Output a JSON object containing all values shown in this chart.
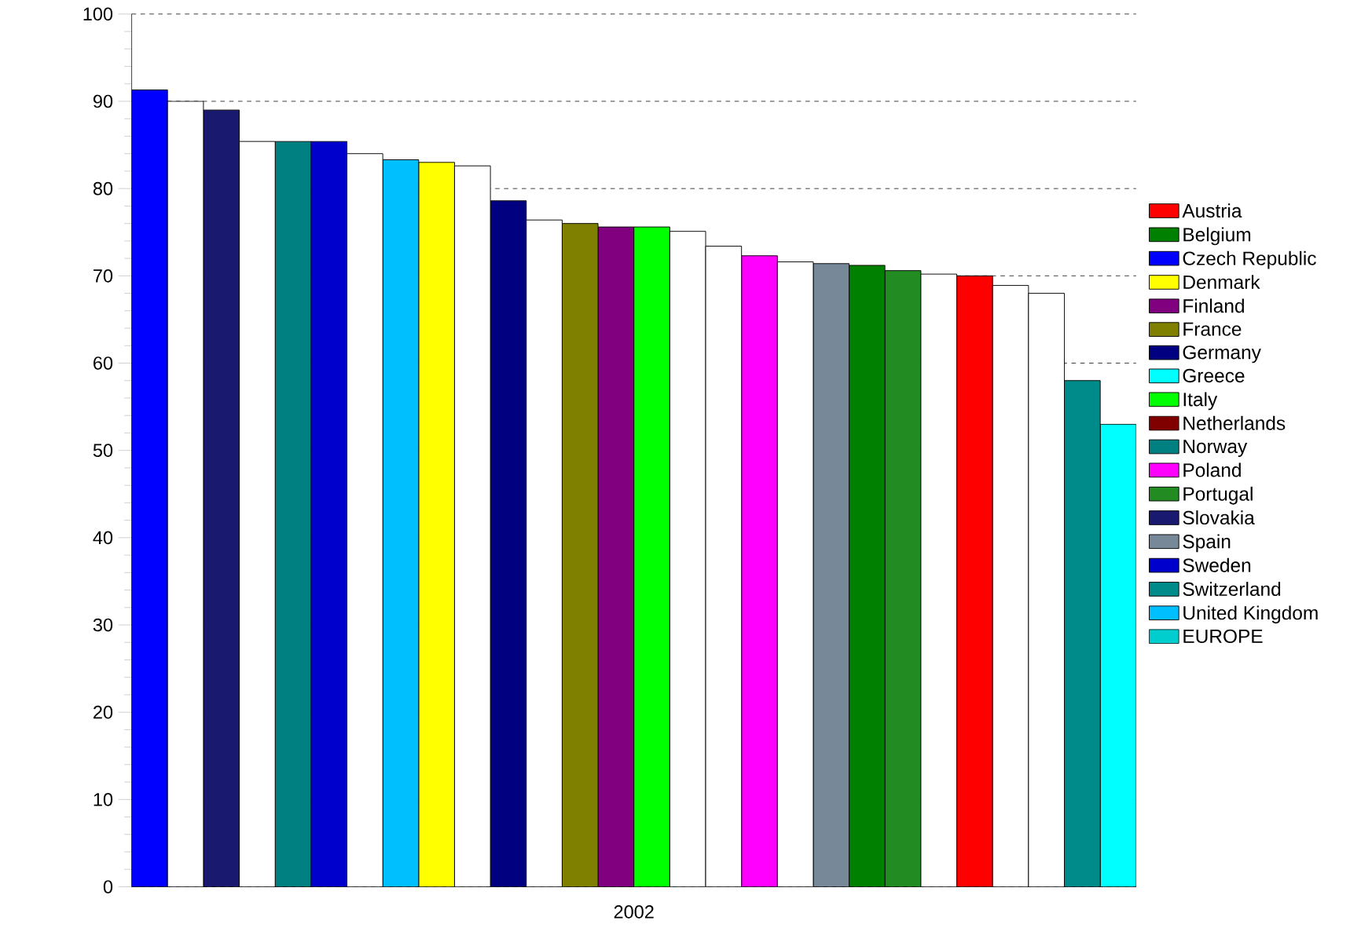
{
  "chart_data": {
    "type": "bar",
    "xlabel": "2002",
    "categories": [
      null,
      null,
      null,
      null,
      null,
      null,
      null,
      null,
      null,
      null,
      null,
      null,
      null,
      null,
      null,
      null,
      null,
      null,
      null,
      null,
      null,
      null,
      null,
      null,
      null,
      null,
      null,
      null
    ],
    "ylim": [
      0,
      100
    ],
    "yticks": [
      0,
      10,
      20,
      30,
      40,
      50,
      60,
      70,
      80,
      90,
      100
    ],
    "grid": "y",
    "line_style": "dashed",
    "legend": "right",
    "series": [
      {
        "name": "Austria",
        "color": "#ff0000",
        "values": [
          null,
          null,
          null,
          null,
          null,
          null,
          null,
          null,
          null,
          null,
          null,
          null,
          null,
          null,
          null,
          null,
          null,
          null,
          null,
          null,
          null,
          null,
          null,
          70,
          null,
          null,
          null,
          null
        ]
      },
      {
        "name": "Belgium",
        "color": "#008000",
        "values": [
          null,
          null,
          null,
          null,
          null,
          null,
          null,
          null,
          null,
          null,
          null,
          null,
          null,
          null,
          null,
          null,
          null,
          null,
          null,
          null,
          71.2,
          null,
          null,
          null,
          null,
          null,
          null,
          null
        ]
      },
      {
        "name": "Czech Republic",
        "color": "#0000ff",
        "values": [
          91.3,
          null,
          null,
          null,
          null,
          null,
          null,
          null,
          null,
          null,
          null,
          null,
          null,
          null,
          null,
          null,
          null,
          null,
          null,
          null,
          null,
          null,
          null,
          null,
          null,
          null,
          null,
          null
        ]
      },
      {
        "name": "Denmark",
        "color": "#ffff00",
        "values": [
          null,
          null,
          null,
          null,
          null,
          null,
          null,
          null,
          83,
          null,
          null,
          null,
          null,
          null,
          null,
          null,
          null,
          null,
          null,
          null,
          null,
          null,
          null,
          null,
          null,
          null,
          null,
          null
        ]
      },
      {
        "name": "Finland",
        "color": "#800080",
        "values": [
          null,
          null,
          null,
          null,
          null,
          null,
          null,
          null,
          null,
          null,
          null,
          null,
          null,
          75.6,
          null,
          null,
          null,
          null,
          null,
          null,
          null,
          null,
          null,
          null,
          null,
          null,
          null,
          null
        ]
      },
      {
        "name": "France",
        "color": "#808000",
        "values": [
          null,
          null,
          null,
          null,
          null,
          null,
          null,
          null,
          null,
          null,
          null,
          null,
          76,
          null,
          null,
          null,
          null,
          null,
          null,
          null,
          null,
          null,
          null,
          null,
          null,
          null,
          null,
          null
        ]
      },
      {
        "name": "Germany",
        "color": "#000080",
        "values": [
          null,
          null,
          null,
          null,
          null,
          null,
          null,
          null,
          null,
          null,
          78.6,
          null,
          null,
          null,
          null,
          null,
          null,
          null,
          null,
          null,
          null,
          null,
          null,
          null,
          null,
          null,
          null,
          null
        ]
      },
      {
        "name": "Greece",
        "color": "#00ffff",
        "values": [
          null,
          null,
          null,
          null,
          null,
          null,
          null,
          null,
          null,
          null,
          null,
          null,
          null,
          null,
          null,
          null,
          null,
          null,
          null,
          null,
          null,
          null,
          null,
          null,
          null,
          null,
          null,
          53
        ]
      },
      {
        "name": "Italy",
        "color": "#00ff00",
        "values": [
          null,
          null,
          null,
          null,
          null,
          null,
          null,
          null,
          null,
          null,
          null,
          null,
          null,
          null,
          75.6,
          null,
          null,
          null,
          null,
          null,
          null,
          null,
          null,
          null,
          null,
          null,
          null,
          null
        ]
      },
      {
        "name": "Netherlands",
        "color": "#800000",
        "values": [
          null,
          null,
          null,
          null,
          null,
          null,
          null,
          null,
          null,
          null,
          null,
          null,
          null,
          null,
          null,
          null,
          null,
          null,
          null,
          null,
          null,
          null,
          null,
          null,
          null,
          null,
          null,
          null
        ]
      },
      {
        "name": "Norway",
        "color": "#008080",
        "values": [
          null,
          null,
          null,
          null,
          85.4,
          null,
          null,
          null,
          null,
          null,
          null,
          null,
          null,
          null,
          null,
          null,
          null,
          null,
          null,
          null,
          null,
          null,
          null,
          null,
          null,
          null,
          null,
          null
        ]
      },
      {
        "name": "Poland",
        "color": "#ff00ff",
        "values": [
          null,
          null,
          null,
          null,
          null,
          null,
          null,
          null,
          null,
          null,
          null,
          null,
          null,
          null,
          null,
          null,
          null,
          72.3,
          null,
          null,
          null,
          null,
          null,
          null,
          null,
          null,
          null,
          null
        ]
      },
      {
        "name": "Portugal",
        "color": "#228b22",
        "values": [
          null,
          null,
          null,
          null,
          null,
          null,
          null,
          null,
          null,
          null,
          null,
          null,
          null,
          null,
          null,
          null,
          null,
          null,
          null,
          null,
          null,
          70.6,
          null,
          null,
          null,
          null,
          null,
          null
        ]
      },
      {
        "name": "Slovakia",
        "color": "#191970",
        "values": [
          null,
          null,
          89,
          null,
          null,
          null,
          null,
          null,
          null,
          null,
          null,
          null,
          null,
          null,
          null,
          null,
          null,
          null,
          null,
          null,
          null,
          null,
          null,
          null,
          null,
          null,
          null,
          null
        ]
      },
      {
        "name": "Spain",
        "color": "#778899",
        "values": [
          null,
          null,
          null,
          null,
          null,
          null,
          null,
          null,
          null,
          null,
          null,
          null,
          null,
          null,
          null,
          null,
          null,
          null,
          null,
          71.4,
          null,
          null,
          null,
          null,
          null,
          null,
          null,
          null
        ]
      },
      {
        "name": "Sweden",
        "color": "#0000cd",
        "values": [
          null,
          null,
          null,
          null,
          null,
          85.4,
          null,
          null,
          null,
          null,
          null,
          null,
          null,
          null,
          null,
          null,
          null,
          null,
          null,
          null,
          null,
          null,
          null,
          null,
          null,
          null,
          null,
          null
        ]
      },
      {
        "name": "Switzerland",
        "color": "#008b8b",
        "values": [
          null,
          null,
          null,
          null,
          null,
          null,
          null,
          null,
          null,
          null,
          null,
          null,
          null,
          null,
          null,
          null,
          null,
          null,
          null,
          null,
          null,
          null,
          null,
          null,
          null,
          null,
          58,
          null
        ]
      },
      {
        "name": "United Kingdom",
        "color": "#00bfff",
        "values": [
          null,
          null,
          null,
          null,
          null,
          null,
          null,
          83.3,
          null,
          null,
          null,
          null,
          null,
          null,
          null,
          null,
          null,
          null,
          null,
          null,
          null,
          null,
          null,
          null,
          null,
          null,
          null,
          null
        ]
      },
      {
        "name": "EUROPE",
        "color": "#00cdcd",
        "values": [
          null,
          null,
          null,
          null,
          null,
          null,
          null,
          null,
          null,
          null,
          null,
          null,
          null,
          null,
          null,
          null,
          null,
          null,
          null,
          null,
          null,
          null,
          null,
          null,
          null,
          null,
          null,
          null
        ]
      },
      {
        "color": "#ffffff",
        "values": [
          null,
          90,
          null,
          85.4,
          null,
          null,
          84,
          null,
          null,
          82.6,
          null,
          76.4,
          null,
          null,
          null,
          75.1,
          73.4,
          null,
          71.6,
          null,
          null,
          null,
          70.2,
          null,
          68.9,
          68,
          null,
          null
        ]
      }
    ]
  }
}
